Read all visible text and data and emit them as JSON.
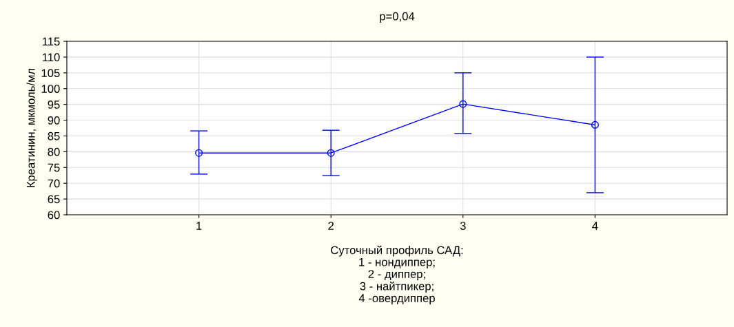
{
  "chart_data": {
    "type": "line",
    "title": "p=0,04",
    "xlabel": "Суточный профиль САД:\n1 - нондиппер;\n2 - диппер;\n3 - найтпикер;\n4 -овердиппер",
    "ylabel": "Креатинин, мкмоль/мл",
    "categories": [
      "1",
      "2",
      "3",
      "4"
    ],
    "series": [
      {
        "color": "#0000ff",
        "values": [
          79.6,
          79.6,
          95.1,
          88.5
        ],
        "errors": [
          [
            72.9,
            86.6
          ],
          [
            72.4,
            86.8
          ],
          [
            85.8,
            105.0
          ],
          [
            67.0,
            110.0
          ]
        ]
      }
    ],
    "ylim": [
      60,
      115
    ],
    "yticks": [
      60,
      65,
      70,
      75,
      80,
      85,
      90,
      95,
      100,
      105,
      110,
      115
    ],
    "grid": true,
    "marker": "circle",
    "line_style": "solid",
    "legend": false
  }
}
